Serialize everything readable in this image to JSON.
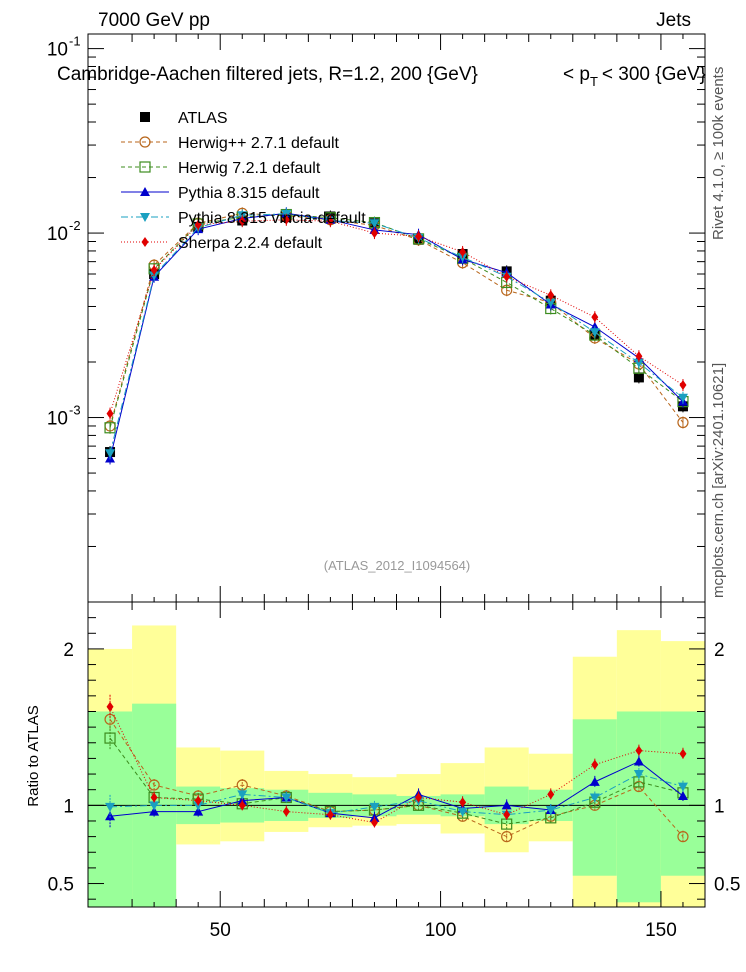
{
  "header": {
    "left": "7000 GeV pp",
    "right": "Jets",
    "title_main": "Cambridge-Aachen filtered jets, R=1.2, 200 {GeV}",
    "title_pt": "< p",
    "title_pt_sub": "T",
    "title_pt_rest": "< 300 {GeV}",
    "side_rivet": "Rivet 4.1.0, ≥ 100k events",
    "side_mcplots": "mcplots.cern.ch [arXiv:2401.10621]",
    "analysis_id": "(ATLAS_2012_I1094564)",
    "ratio_ylabel": "Ratio to ATLAS"
  },
  "colors": {
    "atlas": "#000000",
    "herwigpp": "#b8661b",
    "herwig7": "#3c8c1e",
    "pythia": "#0000cc",
    "vincia": "#1aa0c0",
    "sherpa": "#e00000",
    "band_inner": "#99ff99",
    "band_outer": "#ffff99"
  },
  "chart_data": [
    {
      "type": "scatter",
      "panel": "main",
      "yscale": "log",
      "xlim": [
        20,
        160
      ],
      "ylim": [
        0.0001,
        0.12
      ],
      "yticks": [
        0.001,
        0.01,
        0.1
      ],
      "ytick_labels": [
        "10",
        "10",
        "10"
      ],
      "ytick_exps": [
        "-3",
        "-2",
        "-1"
      ],
      "x": [
        25,
        35,
        45,
        55,
        65,
        75,
        85,
        95,
        105,
        115,
        125,
        135,
        145,
        155
      ],
      "series": [
        {
          "name": "ATLAS",
          "key": "atlas",
          "marker": "square",
          "values": [
            0.00065,
            0.006,
            0.0108,
            0.0117,
            0.0122,
            0.0123,
            0.0113,
            0.0092,
            0.0077,
            0.0062,
            0.0043,
            0.0028,
            0.00165,
            0.00115
          ]
        },
        {
          "name": "Herwig++ 2.7.1 default",
          "key": "herwigpp",
          "marker": "circle",
          "dash": "4,3",
          "values": [
            0.0009,
            0.0067,
            0.0113,
            0.0128,
            0.0124,
            0.0118,
            0.011,
            0.0092,
            0.0069,
            0.0049,
            0.0042,
            0.0027,
            0.00195,
            0.00094
          ]
        },
        {
          "name": "Herwig 7.2.1 default",
          "key": "herwig7",
          "marker": "square-open",
          "dash": "4,3",
          "values": [
            0.00088,
            0.0064,
            0.0112,
            0.0122,
            0.0126,
            0.0121,
            0.0114,
            0.0093,
            0.0073,
            0.0054,
            0.0039,
            0.0028,
            0.00185,
            0.00122
          ]
        },
        {
          "name": "Pythia 8.315 default",
          "key": "pythia",
          "marker": "triangle-up",
          "values": [
            0.0006,
            0.0058,
            0.0105,
            0.012,
            0.0128,
            0.0118,
            0.0104,
            0.0098,
            0.0072,
            0.0061,
            0.0041,
            0.0031,
            0.0021,
            0.00122
          ]
        },
        {
          "name": "Pythia 8.315 vincia-default",
          "key": "vincia",
          "marker": "triangle-down",
          "dash": "7,3,2,3",
          "values": [
            0.00064,
            0.0059,
            0.0107,
            0.0125,
            0.0127,
            0.0117,
            0.0113,
            0.0094,
            0.0074,
            0.0058,
            0.0042,
            0.0029,
            0.00198,
            0.00128
          ]
        },
        {
          "name": "Sherpa 2.2.4 default",
          "key": "sherpa",
          "marker": "diamond",
          "dash": "1,2",
          "values": [
            0.00105,
            0.0063,
            0.0111,
            0.0116,
            0.0118,
            0.0116,
            0.01,
            0.0096,
            0.0079,
            0.0058,
            0.0046,
            0.0035,
            0.00215,
            0.0015
          ]
        }
      ],
      "legend": [
        "ATLAS",
        "Herwig++ 2.7.1 default",
        "Herwig 7.2.1 default",
        "Pythia 8.315 default",
        "Pythia 8.315 vincia-default",
        "Sherpa 2.2.4 default"
      ]
    },
    {
      "type": "line",
      "panel": "ratio",
      "xlim": [
        20,
        160
      ],
      "ylim": [
        0.35,
        2.3
      ],
      "yticks": [
        0.5,
        1,
        2
      ],
      "ytick_labels": [
        "0.5",
        "1",
        "2"
      ],
      "xticks": [
        50,
        100,
        150
      ],
      "xtick_labels": [
        "50",
        "100",
        "150"
      ],
      "ylabel": "Ratio to ATLAS",
      "bin_edges": [
        20,
        30,
        40,
        50,
        60,
        70,
        80,
        90,
        100,
        110,
        120,
        130,
        140,
        150,
        160
      ],
      "band_inner": [
        [
          0.35,
          1.6
        ],
        [
          0.35,
          1.65
        ],
        [
          0.88,
          1.12
        ],
        [
          0.89,
          1.11
        ],
        [
          0.9,
          1.1
        ],
        [
          0.92,
          1.08
        ],
        [
          0.93,
          1.07
        ],
        [
          0.94,
          1.06
        ],
        [
          0.93,
          1.07
        ],
        [
          0.88,
          1.12
        ],
        [
          0.9,
          1.1
        ],
        [
          0.55,
          1.55
        ],
        [
          0.38,
          1.6
        ],
        [
          0.55,
          1.6
        ]
      ],
      "band_outer": [
        [
          0.35,
          2.0
        ],
        [
          0.35,
          2.15
        ],
        [
          0.75,
          1.37
        ],
        [
          0.77,
          1.35
        ],
        [
          0.83,
          1.22
        ],
        [
          0.86,
          1.2
        ],
        [
          0.87,
          1.18
        ],
        [
          0.88,
          1.2
        ],
        [
          0.82,
          1.27
        ],
        [
          0.7,
          1.37
        ],
        [
          0.77,
          1.33
        ],
        [
          0.35,
          1.95
        ],
        [
          0.35,
          2.12
        ],
        [
          0.35,
          2.05
        ]
      ],
      "x": [
        25,
        35,
        45,
        55,
        65,
        75,
        85,
        95,
        105,
        115,
        125,
        135,
        145,
        155
      ],
      "series": [
        {
          "name": "Herwig++ 2.7.1 default",
          "key": "herwigpp",
          "marker": "circle",
          "dash": "4,3",
          "values": [
            1.55,
            1.13,
            1.06,
            1.13,
            1.06,
            0.96,
            0.97,
            1.0,
            0.93,
            0.8,
            0.93,
            1.0,
            1.12,
            0.8
          ]
        },
        {
          "name": "Herwig 7.2.1 default",
          "key": "herwig7",
          "marker": "square-open",
          "dash": "4,3",
          "values": [
            1.43,
            1.05,
            1.04,
            1.01,
            1.05,
            0.96,
            0.97,
            1.0,
            0.95,
            0.88,
            0.92,
            1.02,
            1.15,
            1.08
          ]
        },
        {
          "name": "Pythia 8.315 default",
          "key": "pythia",
          "marker": "triangle-up",
          "values": [
            0.93,
            0.96,
            0.96,
            1.03,
            1.05,
            0.95,
            0.92,
            1.07,
            0.98,
            1.0,
            0.97,
            1.15,
            1.28,
            1.06
          ]
        },
        {
          "name": "Pythia 8.315 vincia-default",
          "key": "vincia",
          "marker": "triangle-down",
          "dash": "7,3,2,3",
          "values": [
            0.99,
            1.0,
            1.0,
            1.07,
            1.05,
            0.95,
            0.99,
            1.03,
            0.96,
            0.94,
            0.97,
            1.05,
            1.2,
            1.12
          ]
        },
        {
          "name": "Sherpa 2.2.4 default",
          "key": "sherpa",
          "marker": "diamond",
          "dash": "1,2",
          "values": [
            1.63,
            1.05,
            1.03,
            1.0,
            0.96,
            0.94,
            0.89,
            1.05,
            1.02,
            0.94,
            1.07,
            1.26,
            1.35,
            1.33
          ]
        }
      ]
    }
  ]
}
